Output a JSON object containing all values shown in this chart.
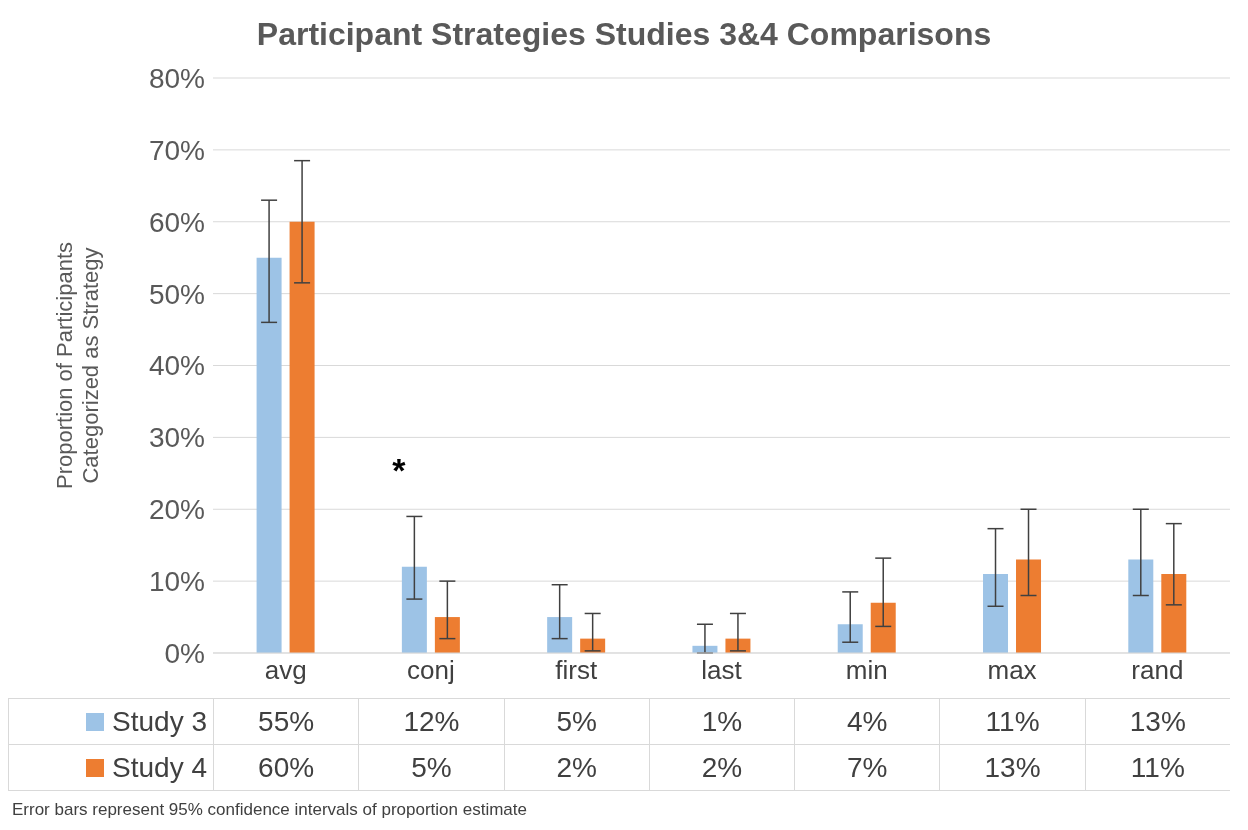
{
  "chart_data": {
    "type": "bar",
    "title": "Participant Strategies Studies 3&4 Comparisons",
    "ylabel": "Proportion of Participants Categorized as Strategy",
    "categories": [
      "avg",
      "conj",
      "first",
      "last",
      "min",
      "max",
      "rand"
    ],
    "series": [
      {
        "name": "Study 3",
        "color": "#9dc3e6",
        "values": [
          55,
          12,
          5,
          1,
          4,
          11,
          13
        ],
        "value_labels": [
          "55%",
          "12%",
          "5%",
          "1%",
          "4%",
          "11%",
          "13%"
        ],
        "errors": [
          [
            46,
            63
          ],
          [
            7.5,
            19
          ],
          [
            2,
            9.5
          ],
          [
            0,
            4
          ],
          [
            1.5,
            8.5
          ],
          [
            6.5,
            17.3
          ],
          [
            8,
            20
          ]
        ]
      },
      {
        "name": "Study 4",
        "color": "#ed7d31",
        "values": [
          60,
          5,
          2,
          2,
          7,
          13,
          11
        ],
        "value_labels": [
          "60%",
          "5%",
          "2%",
          "2%",
          "7%",
          "13%",
          "11%"
        ],
        "errors": [
          [
            51.5,
            68.5
          ],
          [
            2,
            10
          ],
          [
            0.3,
            5.5
          ],
          [
            0.3,
            5.5
          ],
          [
            3.7,
            13.2
          ],
          [
            8,
            20
          ],
          [
            6.7,
            18
          ]
        ]
      }
    ],
    "ylim": [
      0,
      80
    ],
    "yticks": [
      {
        "value": 0,
        "label": "0%"
      },
      {
        "value": 10,
        "label": "10%"
      },
      {
        "value": 20,
        "label": "20%"
      },
      {
        "value": 30,
        "label": "30%"
      },
      {
        "value": 40,
        "label": "40%"
      },
      {
        "value": 50,
        "label": "50%"
      },
      {
        "value": 60,
        "label": "60%"
      },
      {
        "value": 70,
        "label": "70%"
      },
      {
        "value": 80,
        "label": "80%"
      }
    ],
    "grid": "y",
    "legend": "bottom",
    "annotations": [
      "*",
      "Error bars represent 95% confidence intervals of proportion estimate"
    ]
  }
}
